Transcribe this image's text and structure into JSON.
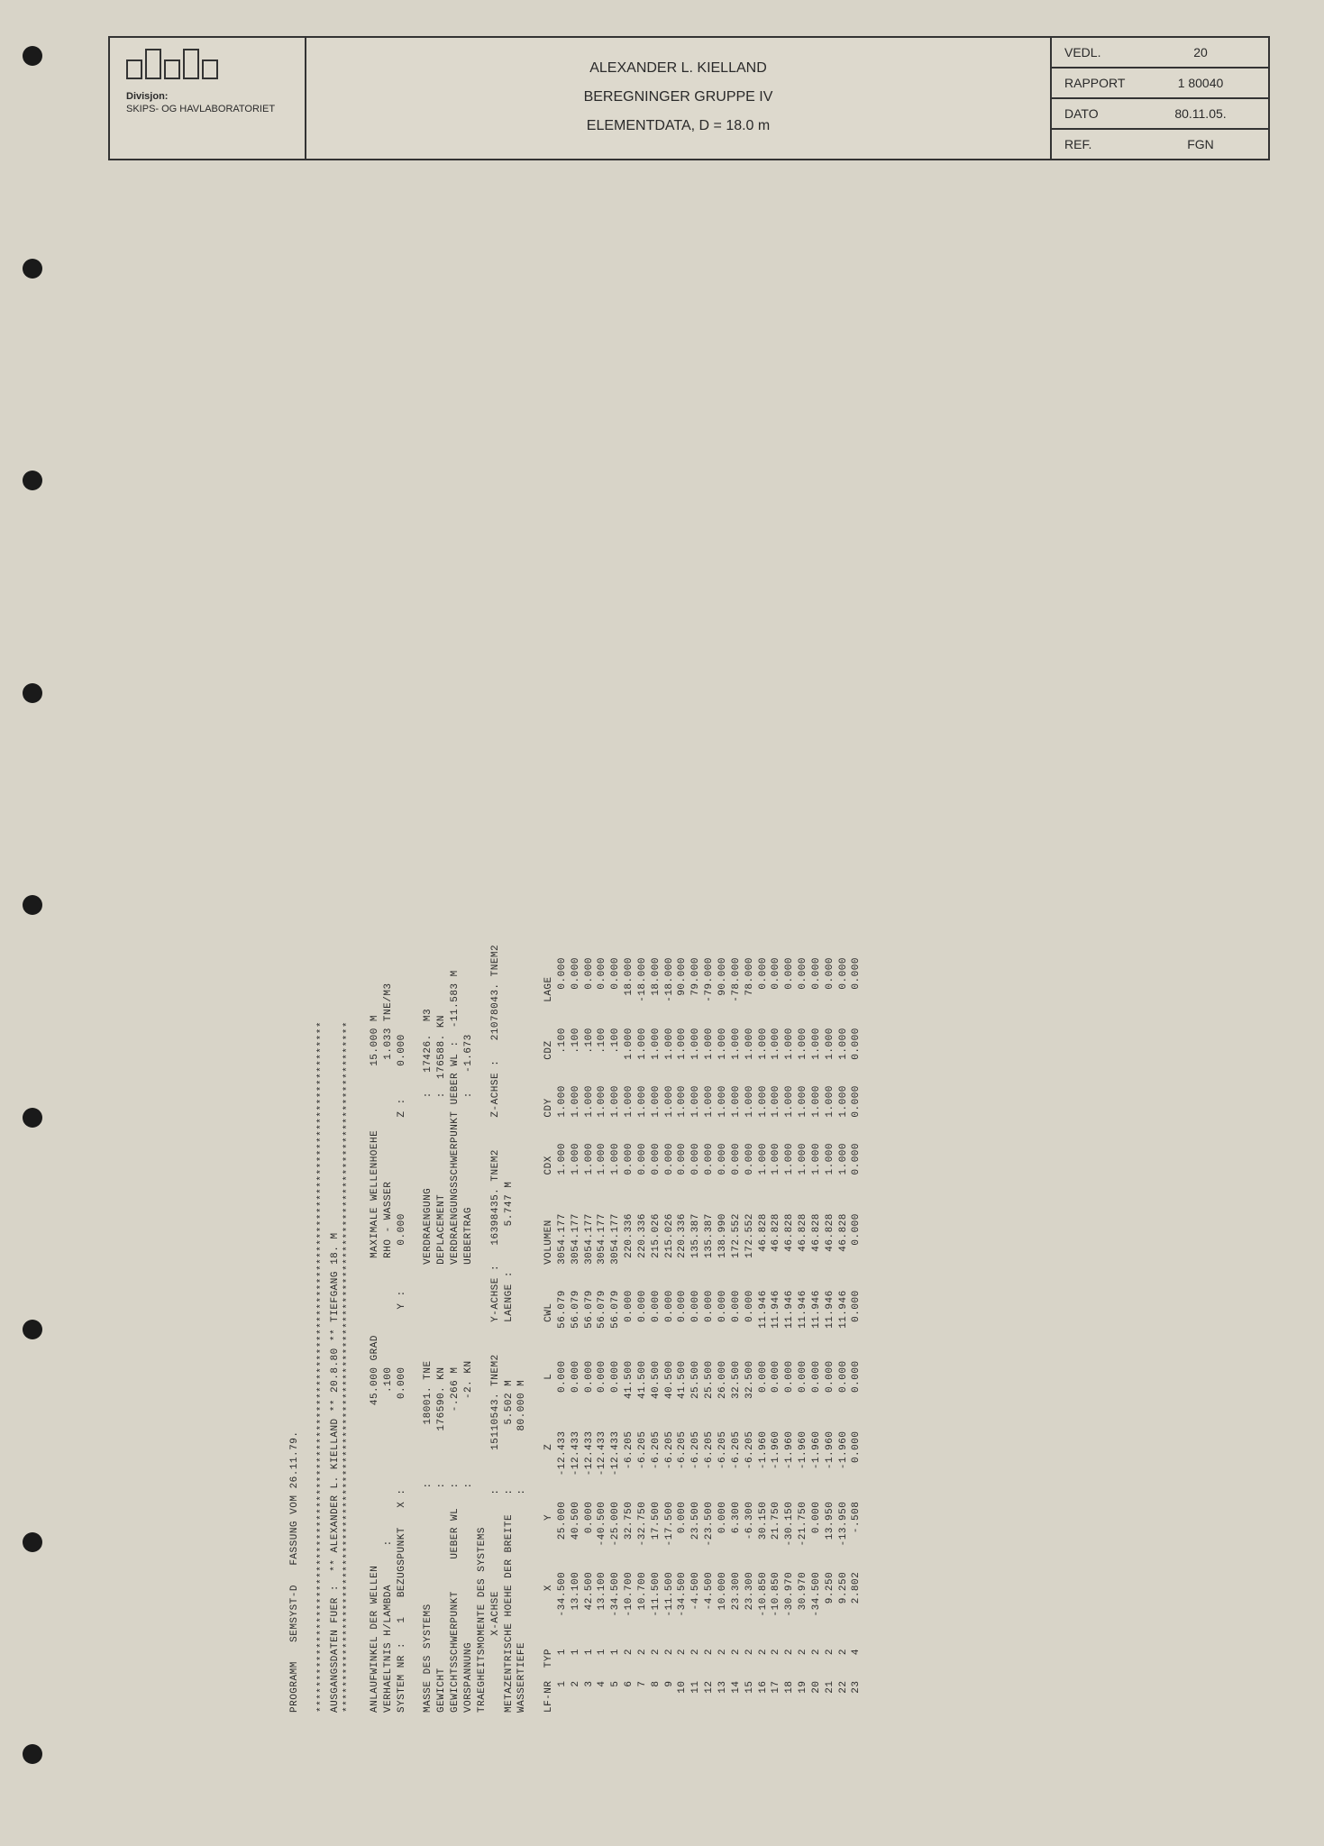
{
  "header": {
    "division_label": "Divisjon:",
    "division_name": "SKIPS- OG\nHAVLABORATORIET",
    "title1": "ALEXANDER L. KIELLAND",
    "title2": "BEREGNINGER GRUPPE IV",
    "title3": "ELEMENTDATA, D = 18.0 m",
    "vedl_label": "VEDL.",
    "vedl_val": "20",
    "rapport_label": "RAPPORT",
    "rapport_val": "1 80040",
    "dato_label": "DATO",
    "dato_val": "80.11.05.",
    "ref_label": "REF.",
    "ref_val": "FGN"
  },
  "printout": {
    "program_line": "PROGRAMM   SEMSYST-D   FASSUNG VOM 26.11.79.",
    "stars1": "************************************************************************************************************",
    "ausgangs": "AUSGANGSDATEN FUER :  ** ALEXANDER L. KIELLAND ** 20.8.80 ** TIEFGANG 18. M",
    "stars2": "************************************************************************************************************",
    "anlauf_lines": [
      "ANLAUFWINKEL DER WELLEN                         45.000 GRAD            MAXIMALE WELLENHOEHE          15.000 M",
      "VERHAELTNIS H/LAMBDA      :                       .100                 RHO - WASSER                   1.033 TNE/M3",
      "SYSTEM NR :   1   BEZUGSPUNKT   X :              0.000         Y :       0.000               Z :     0.000"
    ],
    "mass_lines": [
      "MASSE DES SYSTEMS                  :         18001. TNE               VERDRAENGUNG              :   17426.  M3",
      "GEWICHT                            :        176590. KN                DEPLACEMENT               :  176588. KN",
      "GEWICHTSSCHWERPUNKT     UEBER WL   :           -.266 M                VERDRAENGUNGSSCHWERPUNKT UEBER WL :  -11.583 M",
      "VORSPANNUNG                        :             -2. KN               UEBERTRAG                 :   -1.673"
    ],
    "traeg_lines": [
      "TRAEGHEITSMOMENTE DES SYSTEMS",
      "            X-ACHSE               :      15110543. TNEM2     Y-ACHSE :   16398435. TNEM2     Z-ACHSE :   21078043. TNEM2",
      "METAZENTRISCHE HOEHE DER BREITE   :          5.502 M         LAENGE :       5.747 M",
      "WASSERTIEFE                       :         80.000 M"
    ],
    "table_header": "LF-NR  TYP         X          Y          Z          L        CWL      VOLUMEN       CDX      CDY      CDZ      LAGE",
    "rows": [
      [
        "1",
        "1",
        "-34.500",
        "25.000",
        "-12.433",
        "0.000",
        "56.079",
        "3054.177",
        "1.000",
        "1.000",
        ".100",
        "0.000"
      ],
      [
        "2",
        "1",
        "13.100",
        "40.500",
        "-12.433",
        "0.000",
        "56.079",
        "3054.177",
        "1.000",
        "1.000",
        ".100",
        "0.000"
      ],
      [
        "3",
        "1",
        "42.500",
        "0.000",
        "-12.433",
        "0.000",
        "56.079",
        "3054.177",
        "1.000",
        "1.000",
        ".100",
        "0.000"
      ],
      [
        "4",
        "1",
        "13.100",
        "-40.500",
        "-12.433",
        "0.000",
        "56.079",
        "3054.177",
        "1.000",
        "1.000",
        ".100",
        "0.000"
      ],
      [
        "5",
        "1",
        "-34.500",
        "-25.000",
        "-12.433",
        "0.000",
        "56.079",
        "3054.177",
        "1.000",
        "1.000",
        ".100",
        "0.000"
      ],
      [
        "6",
        "2",
        "-10.700",
        "32.750",
        "-6.205",
        "41.500",
        "0.000",
        "220.336",
        "0.000",
        "1.000",
        "1.000",
        "18.000"
      ],
      [
        "7",
        "2",
        "10.700",
        "-32.750",
        "-6.205",
        "41.500",
        "0.000",
        "220.336",
        "0.000",
        "1.000",
        "1.000",
        "-18.000"
      ],
      [
        "8",
        "2",
        "-11.500",
        "17.500",
        "-6.205",
        "40.500",
        "0.000",
        "215.026",
        "0.000",
        "1.000",
        "1.000",
        "18.000"
      ],
      [
        "9",
        "2",
        "-11.500",
        "-17.500",
        "-6.205",
        "40.500",
        "0.000",
        "215.026",
        "0.000",
        "1.000",
        "1.000",
        "-18.000"
      ],
      [
        "10",
        "2",
        "-34.500",
        "0.000",
        "-6.205",
        "41.500",
        "0.000",
        "220.336",
        "0.000",
        "1.000",
        "1.000",
        "90.000"
      ],
      [
        "11",
        "2",
        "-4.500",
        "23.500",
        "-6.205",
        "25.500",
        "0.000",
        "135.387",
        "0.000",
        "1.000",
        "1.000",
        "79.000"
      ],
      [
        "12",
        "2",
        "-4.500",
        "-23.500",
        "-6.205",
        "25.500",
        "0.000",
        "135.387",
        "0.000",
        "1.000",
        "1.000",
        "-79.000"
      ],
      [
        "13",
        "2",
        "10.000",
        "0.000",
        "-6.205",
        "26.000",
        "0.000",
        "138.990",
        "0.000",
        "1.000",
        "1.000",
        "90.000"
      ],
      [
        "14",
        "2",
        "23.300",
        "6.300",
        "-6.205",
        "32.500",
        "0.000",
        "172.552",
        "0.000",
        "1.000",
        "1.000",
        "-78.000"
      ],
      [
        "15",
        "2",
        "23.300",
        "-6.300",
        "-6.205",
        "32.500",
        "0.000",
        "172.552",
        "0.000",
        "1.000",
        "1.000",
        "78.000"
      ],
      [
        "16",
        "2",
        "-10.850",
        "30.150",
        "-1.960",
        "0.000",
        "11.946",
        "46.828",
        "1.000",
        "1.000",
        "1.000",
        "0.000"
      ],
      [
        "17",
        "2",
        "-10.850",
        "21.750",
        "-1.960",
        "0.000",
        "11.946",
        "46.828",
        "1.000",
        "1.000",
        "1.000",
        "0.000"
      ],
      [
        "18",
        "2",
        "-30.970",
        "-30.150",
        "-1.960",
        "0.000",
        "11.946",
        "46.828",
        "1.000",
        "1.000",
        "1.000",
        "0.000"
      ],
      [
        "19",
        "2",
        "30.970",
        "-21.750",
        "-1.960",
        "0.000",
        "11.946",
        "46.828",
        "1.000",
        "1.000",
        "1.000",
        "0.000"
      ],
      [
        "20",
        "2",
        "-34.500",
        "0.000",
        "-1.960",
        "0.000",
        "11.946",
        "46.828",
        "1.000",
        "1.000",
        "1.000",
        "0.000"
      ],
      [
        "21",
        "2",
        "9.250",
        "13.950",
        "-1.960",
        "0.000",
        "11.946",
        "46.828",
        "1.000",
        "1.000",
        "1.000",
        "0.000"
      ],
      [
        "22",
        "2",
        "9.250",
        "-13.950",
        "-1.960",
        "0.000",
        "11.946",
        "46.828",
        "1.000",
        "1.000",
        "1.000",
        "0.000"
      ],
      [
        "23",
        "4",
        "2.802",
        "-.508",
        "0.000",
        "0.000",
        "0.000",
        "0.000",
        "0.000",
        "0.000",
        "0.000",
        "0.000"
      ]
    ]
  },
  "colors": {
    "paper": "#d8d4c8",
    "ink": "#2a2a2a",
    "hole": "#1a1a1a"
  },
  "hole_positions_pct": [
    2.5,
    14,
    25.5,
    37,
    48.5,
    60,
    71.5,
    83,
    94.5
  ]
}
